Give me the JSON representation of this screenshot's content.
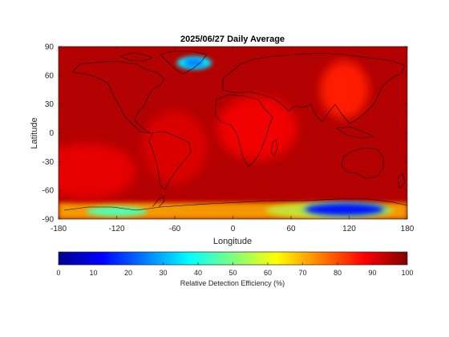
{
  "chart_data": {
    "type": "heatmap",
    "title": "2025/06/27 Daily Average",
    "xlabel": "Longitude",
    "ylabel": "Latitude",
    "xlim": [
      -180,
      180
    ],
    "ylim": [
      -90,
      90
    ],
    "xticks": [
      -180,
      -120,
      -60,
      0,
      60,
      120,
      180
    ],
    "yticks": [
      -90,
      -60,
      -30,
      0,
      30,
      60,
      90
    ],
    "colormap": "jet",
    "colorbar": {
      "label": "Relative Detection Efficiency (%)",
      "range": [
        0,
        100
      ],
      "ticks": [
        0,
        10,
        20,
        30,
        40,
        50,
        60,
        70,
        80,
        90,
        100
      ],
      "orientation": "horizontal",
      "position": "bottom"
    },
    "background_value": 95,
    "regions": [
      {
        "name": "Greenland cap",
        "lon": -40,
        "lat": 73,
        "value": 35
      },
      {
        "name": "East Asia high",
        "lon": 115,
        "lat": 45,
        "value": 85
      },
      {
        "name": "Africa belt",
        "lon": 25,
        "lat": 5,
        "value": 89
      },
      {
        "name": "South America",
        "lon": -60,
        "lat": -15,
        "value": 91
      },
      {
        "name": "Southern Pacific",
        "lon": -150,
        "lat": -40,
        "value": 90
      },
      {
        "name": "East Antarctica",
        "lon": 115,
        "lat": -80,
        "value": 20
      },
      {
        "name": "West Antarctica",
        "lon": -120,
        "lat": -82,
        "value": 45
      }
    ]
  }
}
